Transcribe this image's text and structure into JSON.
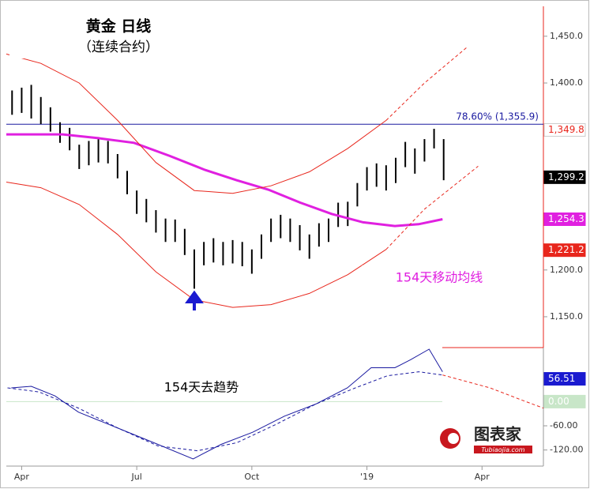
{
  "chart_data": [
    {
      "type": "ohlc",
      "title": "黄金 日线",
      "subtitle": "（连续合约）",
      "annotation": "154天移动均线",
      "annotation_color": "#e020e0",
      "xlim": [
        -0.4,
        13.6
      ],
      "ylim": [
        1117,
        1482
      ],
      "yticks": [
        {
          "value": 1450,
          "label": "1,450.0"
        },
        {
          "value": 1400,
          "label": "1,400.0"
        },
        {
          "value": 1200,
          "label": "1,200.0"
        },
        {
          "value": 1150,
          "label": "1,150.0"
        }
      ],
      "bar_color": "#000000",
      "x": [
        -0.25,
        0,
        0.25,
        0.5,
        0.75,
        1,
        1.25,
        1.5,
        1.75,
        2,
        2.25,
        2.5,
        2.75,
        3,
        3.25,
        3.5,
        3.75,
        4,
        4.25,
        4.5,
        4.75,
        5,
        5.25,
        5.5,
        5.75,
        6,
        6.25,
        6.5,
        6.75,
        7,
        7.25,
        7.5,
        7.75,
        8,
        8.25,
        8.5,
        8.75,
        9,
        9.25,
        9.5,
        9.75,
        10,
        10.25,
        10.5,
        10.75,
        11
      ],
      "high": [
        1392,
        1395,
        1398,
        1385,
        1374,
        1358,
        1352,
        1334,
        1338,
        1340,
        1338,
        1324,
        1306,
        1285,
        1276,
        1264,
        1255,
        1254,
        1244,
        1222,
        1230,
        1234,
        1230,
        1232,
        1230,
        1222,
        1238,
        1255,
        1259,
        1255,
        1248,
        1238,
        1250,
        1255,
        1272,
        1273,
        1293,
        1310,
        1314,
        1312,
        1320,
        1337,
        1330,
        1340,
        1351,
        1340
      ],
      "low": [
        1366,
        1368,
        1362,
        1356,
        1348,
        1336,
        1328,
        1308,
        1312,
        1315,
        1314,
        1298,
        1281,
        1260,
        1251,
        1240,
        1230,
        1230,
        1216,
        1180,
        1205,
        1208,
        1205,
        1207,
        1204,
        1196,
        1212,
        1230,
        1234,
        1230,
        1221,
        1212,
        1225,
        1230,
        1246,
        1247,
        1268,
        1285,
        1289,
        1285,
        1293,
        1310,
        1303,
        1316,
        1330,
        1296
      ],
      "series": [
        {
          "color": "#e020e0",
          "width": 3,
          "dashed": false,
          "x": [
            -0.4,
            1.07,
            2,
            2.93,
            3.86,
            4.78,
            5.6,
            6.43,
            7.26,
            8.08,
            8.9,
            9.73,
            10.35,
            10.97
          ],
          "values": [
            1345,
            1345,
            1341,
            1336,
            1322,
            1307,
            1296,
            1286,
            1272,
            1260,
            1251,
            1247,
            1249,
            1254.3
          ]
        },
        {
          "color": "#e8261c",
          "width": 1,
          "dashed": false,
          "x": [
            -0.4,
            0.5,
            1.5,
            2.5,
            3.5,
            4.5,
            5.5,
            6.5,
            7.5,
            8.5,
            9.5
          ],
          "values": [
            1431,
            1421,
            1400,
            1360,
            1315,
            1285,
            1282,
            1290,
            1305,
            1330,
            1360
          ]
        },
        {
          "color": "#e8261c",
          "width": 1,
          "dashed": true,
          "x": [
            9.5,
            10.5,
            11.6
          ],
          "values": [
            1360,
            1400,
            1438
          ]
        },
        {
          "color": "#e8261c",
          "width": 1,
          "dashed": false,
          "x": [
            -0.4,
            0.5,
            1.5,
            2.5,
            3.5,
            4.5,
            5.5,
            6.5,
            7.5,
            8.5,
            9.5
          ],
          "values": [
            1294,
            1288,
            1270,
            1238,
            1198,
            1168,
            1160,
            1163,
            1175,
            1195,
            1222
          ]
        },
        {
          "color": "#e8261c",
          "width": 1,
          "dashed": true,
          "x": [
            9.5,
            10.5,
            11.9
          ],
          "values": [
            1222,
            1265,
            1311
          ]
        }
      ],
      "hlines": [
        {
          "value": 1355.9,
          "label": "78.60% (1,355.9)",
          "color": "#1a1aa0"
        }
      ],
      "markers": [
        {
          "value": 1349.8,
          "label": "1,349.8",
          "color": "#ffffff",
          "text_color": "#e8261c"
        },
        {
          "value": 1299.2,
          "label": "1,299.2",
          "color": "#000000",
          "text_color": "#ffffff"
        },
        {
          "value": 1254.3,
          "label": "1,254.3",
          "color": "#e020e0",
          "text_color": "#ffffff"
        },
        {
          "value": 1221.2,
          "label": "1,221.2",
          "color": "#e8261c",
          "text_color": "#ffffff"
        }
      ]
    },
    {
      "type": "line",
      "annotation": "154天去趋势",
      "xlim": [
        -0.4,
        13.6
      ],
      "ylim": [
        -156,
        134
      ],
      "xticks": [
        {
          "value": 0,
          "label": "Apr"
        },
        {
          "value": 3,
          "label": "Jul"
        },
        {
          "value": 6,
          "label": "Oct"
        },
        {
          "value": 9,
          "label": "'19"
        },
        {
          "value": 12,
          "label": "Apr"
        }
      ],
      "yticks": [
        {
          "value": -60,
          "label": "-60.00"
        },
        {
          "value": -120,
          "label": "-120.00"
        }
      ],
      "series": [
        {
          "color": "#1a1aa0",
          "width": 1,
          "dashed": false,
          "x": [
            -0.27,
            0.25,
            0.87,
            1.48,
            2.52,
            3.55,
            4.47,
            5.2,
            6.02,
            6.85,
            7.67,
            8.49,
            9.11,
            9.73,
            10.14,
            10.62,
            10.97
          ],
          "values": [
            34,
            38,
            14,
            -26,
            -66,
            -106,
            -142,
            -106,
            -76,
            -36,
            -6,
            34,
            84,
            84,
            104,
            130,
            74
          ]
        },
        {
          "color": "#1a1aa0",
          "width": 1,
          "dashed": true,
          "x": [
            -0.37,
            0.45,
            1.48,
            2.52,
            3.55,
            4.58,
            5.61,
            6.64,
            7.67,
            8.7,
            9.53,
            10.35,
            10.97
          ],
          "values": [
            34,
            24,
            -16,
            -66,
            -110,
            -122,
            -102,
            -56,
            -6,
            34,
            64,
            74,
            66
          ]
        },
        {
          "color": "#e8261c",
          "width": 1,
          "dashed": true,
          "x": [
            10.97,
            12.21,
            13.03,
            13.6
          ],
          "values": [
            66,
            34,
            4,
            -16
          ]
        }
      ],
      "markers": [
        {
          "value": 56.51,
          "label": "56.51",
          "color": "#1a1ad0",
          "text_color": "#ffffff"
        },
        {
          "value": 0,
          "label": "0.00",
          "color": "#c8e6c8",
          "text_color": "#ffffff"
        }
      ]
    }
  ],
  "logo": {
    "name": "图表家",
    "url": "Tubiaojia.com"
  }
}
